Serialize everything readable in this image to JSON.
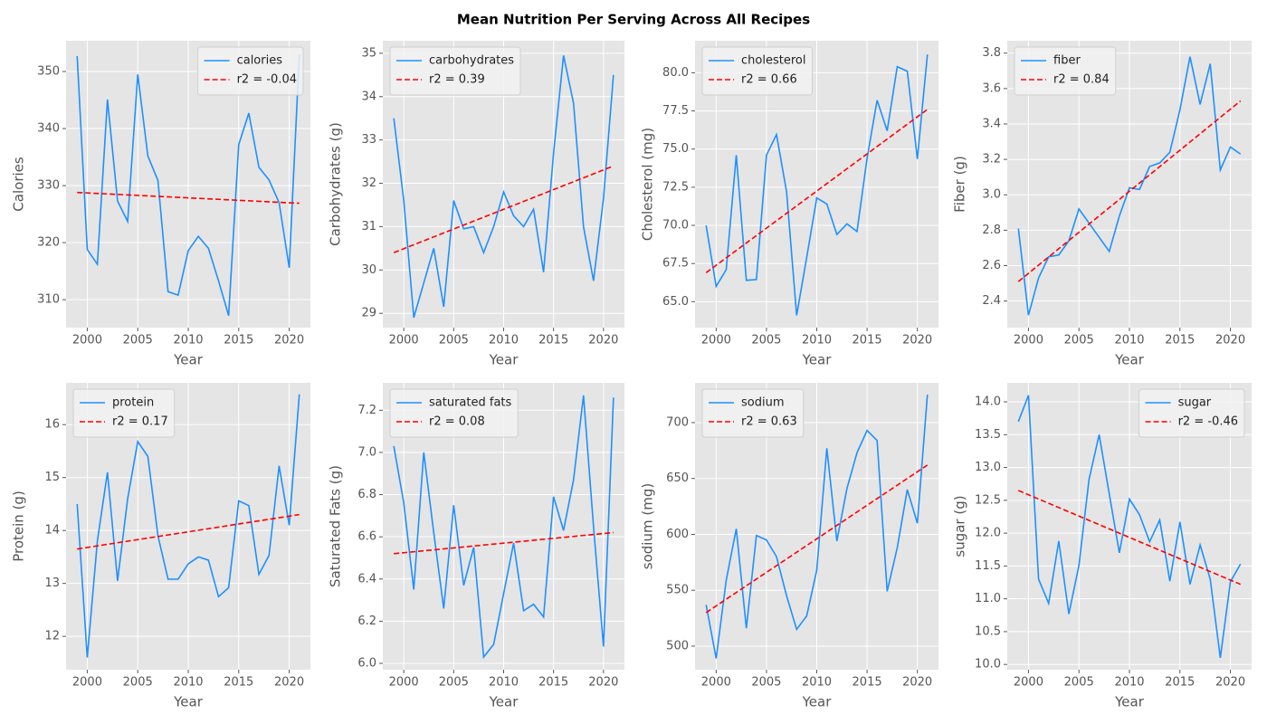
{
  "title": "Mean Nutrition Per Serving Across All Recipes",
  "chart_data": [
    {
      "type": "line",
      "xlabel": "Year",
      "ylabel": "Calories",
      "x": [
        1999,
        2000,
        2001,
        2002,
        2003,
        2004,
        2005,
        2006,
        2007,
        2008,
        2009,
        2010,
        2011,
        2012,
        2013,
        2014,
        2015,
        2016,
        2017,
        2018,
        2019,
        2020,
        2021
      ],
      "xlim": [
        1997.9,
        2022.1
      ],
      "xticks": [
        2000,
        2005,
        2010,
        2015,
        2020
      ],
      "ylim": [
        305.1,
        355.4
      ],
      "yticks": [
        310,
        320,
        330,
        340,
        350
      ],
      "grid": true,
      "legend": "upper right",
      "series": [
        {
          "name": "calories",
          "color": "#1e90ff",
          "linestyle": "solid",
          "values": [
            352.7,
            318.8,
            316.2,
            345.1,
            327.3,
            323.7,
            349.5,
            335.2,
            330.9,
            311.4,
            310.8,
            318.6,
            321.1,
            319.0,
            313.3,
            307.2,
            337.2,
            342.7,
            333.2,
            331.0,
            327.0,
            315.6,
            353.0
          ]
        },
        {
          "name": "r2 = -0.04",
          "color": "#ff0000",
          "linestyle": "dashed",
          "x": [
            1999,
            2021
          ],
          "values": [
            328.8,
            326.9
          ]
        }
      ]
    },
    {
      "type": "line",
      "xlabel": "Year",
      "ylabel": "Carbohydrates (g)",
      "x": [
        1999,
        2000,
        2001,
        2002,
        2003,
        2004,
        2005,
        2006,
        2007,
        2008,
        2009,
        2010,
        2011,
        2012,
        2013,
        2014,
        2015,
        2016,
        2017,
        2018,
        2019,
        2020,
        2021
      ],
      "xlim": [
        1997.9,
        2022.1
      ],
      "xticks": [
        2000,
        2005,
        2010,
        2015,
        2020
      ],
      "ylim": [
        28.67,
        35.29
      ],
      "yticks": [
        29,
        30,
        31,
        32,
        33,
        34,
        35
      ],
      "grid": true,
      "legend": "upper left",
      "series": [
        {
          "name": "carbohydrates",
          "color": "#1e90ff",
          "linestyle": "solid",
          "values": [
            33.5,
            31.6,
            28.9,
            29.7,
            30.5,
            29.15,
            31.6,
            30.95,
            31.0,
            30.4,
            31.0,
            31.8,
            31.25,
            31.0,
            31.4,
            29.95,
            32.7,
            34.95,
            33.85,
            31.0,
            29.75,
            31.65,
            34.5
          ]
        },
        {
          "name": "r2 = 0.39",
          "color": "#ff0000",
          "linestyle": "dashed",
          "x": [
            1999,
            2021
          ],
          "values": [
            30.4,
            32.4
          ]
        }
      ]
    },
    {
      "type": "line",
      "xlabel": "Year",
      "ylabel": "Cholesterol (mg)",
      "x": [
        1999,
        2000,
        2001,
        2002,
        2003,
        2004,
        2005,
        2006,
        2007,
        2008,
        2009,
        2010,
        2011,
        2012,
        2013,
        2014,
        2015,
        2016,
        2017,
        2018,
        2019,
        2020,
        2021
      ],
      "xlim": [
        1997.9,
        2022.1
      ],
      "xticks": [
        2000,
        2005,
        2010,
        2015,
        2020
      ],
      "ylim": [
        63.3,
        82.1
      ],
      "yticks": [
        {
          "value": 65,
          "label": "65.0"
        },
        67.5,
        {
          "value": 70,
          "label": "70.0"
        },
        72.5,
        {
          "value": 75,
          "label": "75.0"
        },
        77.5,
        {
          "value": 80,
          "label": "80.0"
        }
      ],
      "grid": true,
      "legend": "upper left",
      "series": [
        {
          "name": "cholesterol",
          "color": "#1e90ff",
          "linestyle": "solid",
          "values": [
            70.0,
            66.0,
            67.1,
            74.6,
            66.4,
            66.45,
            74.6,
            75.95,
            72.2,
            64.1,
            67.9,
            71.8,
            71.4,
            69.4,
            70.1,
            69.6,
            74.4,
            78.2,
            76.2,
            80.4,
            80.1,
            74.35,
            81.2
          ]
        },
        {
          "name": "r2 = 0.66",
          "color": "#ff0000",
          "linestyle": "dashed",
          "x": [
            1999,
            2021
          ],
          "values": [
            66.9,
            77.6
          ]
        }
      ]
    },
    {
      "type": "line",
      "xlabel": "Year",
      "ylabel": "Fiber (g)",
      "x": [
        1999,
        2000,
        2001,
        2002,
        2003,
        2004,
        2005,
        2006,
        2007,
        2008,
        2009,
        2010,
        2011,
        2012,
        2013,
        2014,
        2015,
        2016,
        2017,
        2018,
        2019,
        2020,
        2021
      ],
      "xlim": [
        1997.9,
        2022.1
      ],
      "xticks": [
        2000,
        2005,
        2010,
        2015,
        2020
      ],
      "ylim": [
        2.25,
        3.87
      ],
      "yticks": [
        2.4,
        2.6,
        2.8,
        {
          "value": 3,
          "label": "3.0"
        },
        3.2,
        3.4,
        3.6,
        3.8
      ],
      "grid": true,
      "legend": "upper left",
      "series": [
        {
          "name": "fiber",
          "color": "#1e90ff",
          "linestyle": "solid",
          "values": [
            2.81,
            2.32,
            2.53,
            2.65,
            2.66,
            2.74,
            2.92,
            2.84,
            2.76,
            2.68,
            2.88,
            3.04,
            3.03,
            3.16,
            3.18,
            3.24,
            3.48,
            3.78,
            3.51,
            3.74,
            3.14,
            3.27,
            3.23
          ]
        },
        {
          "name": "r2 = 0.84",
          "color": "#ff0000",
          "linestyle": "dashed",
          "x": [
            1999,
            2021
          ],
          "values": [
            2.51,
            3.53
          ]
        }
      ]
    },
    {
      "type": "line",
      "xlabel": "Year",
      "ylabel": "Protein (g)",
      "x": [
        1999,
        2000,
        2001,
        2002,
        2003,
        2004,
        2005,
        2006,
        2007,
        2008,
        2009,
        2010,
        2011,
        2012,
        2013,
        2014,
        2015,
        2016,
        2017,
        2018,
        2019,
        2020,
        2021
      ],
      "xlim": [
        1997.9,
        2022.1
      ],
      "xticks": [
        2000,
        2005,
        2010,
        2015,
        2020
      ],
      "ylim": [
        11.37,
        16.79
      ],
      "yticks": [
        12,
        13,
        14,
        15,
        16
      ],
      "grid": true,
      "legend": "upper left",
      "series": [
        {
          "name": "protein",
          "color": "#1e90ff",
          "linestyle": "solid",
          "values": [
            14.5,
            11.6,
            13.8,
            15.1,
            13.05,
            14.6,
            15.68,
            15.4,
            13.9,
            13.08,
            13.08,
            13.37,
            13.5,
            13.44,
            12.75,
            12.92,
            14.56,
            14.47,
            13.17,
            13.53,
            15.22,
            14.1,
            16.57
          ]
        },
        {
          "name": "r2 = 0.17",
          "color": "#ff0000",
          "linestyle": "dashed",
          "x": [
            1999,
            2021
          ],
          "values": [
            13.65,
            14.3
          ]
        }
      ]
    },
    {
      "type": "line",
      "xlabel": "Year",
      "ylabel": "Saturated Fats (g)",
      "x": [
        1999,
        2000,
        2001,
        2002,
        2003,
        2004,
        2005,
        2006,
        2007,
        2008,
        2009,
        2010,
        2011,
        2012,
        2013,
        2014,
        2015,
        2016,
        2017,
        2018,
        2019,
        2020,
        2021
      ],
      "xlim": [
        1997.9,
        2022.1
      ],
      "xticks": [
        2000,
        2005,
        2010,
        2015,
        2020
      ],
      "ylim": [
        5.97,
        7.33
      ],
      "yticks": [
        {
          "value": 6,
          "label": "6.0"
        },
        6.2,
        6.4,
        6.6,
        6.8,
        {
          "value": 7,
          "label": "7.0"
        },
        7.2
      ],
      "grid": true,
      "legend": "upper left",
      "series": [
        {
          "name": "saturated fats",
          "color": "#1e90ff",
          "linestyle": "solid",
          "values": [
            7.03,
            6.76,
            6.35,
            7.0,
            6.62,
            6.26,
            6.75,
            6.37,
            6.55,
            6.03,
            6.09,
            6.33,
            6.57,
            6.25,
            6.28,
            6.22,
            6.79,
            6.63,
            6.87,
            7.27,
            6.65,
            6.08,
            7.26
          ]
        },
        {
          "name": "r2 = 0.08",
          "color": "#ff0000",
          "linestyle": "dashed",
          "x": [
            1999,
            2021
          ],
          "values": [
            6.52,
            6.62
          ]
        }
      ]
    },
    {
      "type": "line",
      "xlabel": "Year",
      "ylabel": "sodium (mg)",
      "x": [
        1999,
        2000,
        2001,
        2002,
        2003,
        2004,
        2005,
        2006,
        2007,
        2008,
        2009,
        2010,
        2011,
        2012,
        2013,
        2014,
        2015,
        2016,
        2017,
        2018,
        2019,
        2020,
        2021
      ],
      "xlim": [
        1997.9,
        2022.1
      ],
      "xticks": [
        2000,
        2005,
        2010,
        2015,
        2020
      ],
      "ylim": [
        478.9,
        735.6
      ],
      "yticks": [
        500,
        550,
        600,
        650,
        700
      ],
      "grid": true,
      "legend": "upper left",
      "series": [
        {
          "name": "sodium",
          "color": "#1e90ff",
          "linestyle": "solid",
          "values": [
            537,
            489,
            559,
            605,
            516,
            599,
            595,
            580,
            545,
            515,
            527,
            568,
            677,
            594,
            641,
            673,
            693,
            684,
            549,
            588,
            640,
            610,
            725
          ]
        },
        {
          "name": "r2 = 0.63",
          "color": "#ff0000",
          "linestyle": "dashed",
          "x": [
            1999,
            2021
          ],
          "values": [
            530,
            662
          ]
        }
      ]
    },
    {
      "type": "line",
      "xlabel": "Year",
      "ylabel": "sugar (g)",
      "x": [
        1999,
        2000,
        2001,
        2002,
        2003,
        2004,
        2005,
        2006,
        2007,
        2008,
        2009,
        2010,
        2011,
        2012,
        2013,
        2014,
        2015,
        2016,
        2017,
        2018,
        2019,
        2020,
        2021
      ],
      "xlim": [
        1997.9,
        2022.1
      ],
      "xticks": [
        2000,
        2005,
        2010,
        2015,
        2020
      ],
      "ylim": [
        9.92,
        14.29
      ],
      "yticks": [
        {
          "value": 10,
          "label": "10.0"
        },
        10.5,
        {
          "value": 11,
          "label": "11.0"
        },
        11.5,
        {
          "value": 12,
          "label": "12.0"
        },
        12.5,
        {
          "value": 13,
          "label": "13.0"
        },
        13.5,
        {
          "value": 14,
          "label": "14.0"
        }
      ],
      "grid": true,
      "legend": "upper right",
      "series": [
        {
          "name": "sugar",
          "color": "#1e90ff",
          "linestyle": "solid",
          "values": [
            13.7,
            14.1,
            11.3,
            10.93,
            11.88,
            10.77,
            11.51,
            12.82,
            13.5,
            12.6,
            11.7,
            12.52,
            12.28,
            11.87,
            12.2,
            11.27,
            12.17,
            11.22,
            11.82,
            11.3,
            10.1,
            11.26,
            11.53
          ]
        },
        {
          "name": "r2 = -0.46",
          "color": "#ff0000",
          "linestyle": "dashed",
          "x": [
            1999,
            2021
          ],
          "values": [
            12.65,
            11.22
          ]
        }
      ]
    }
  ]
}
